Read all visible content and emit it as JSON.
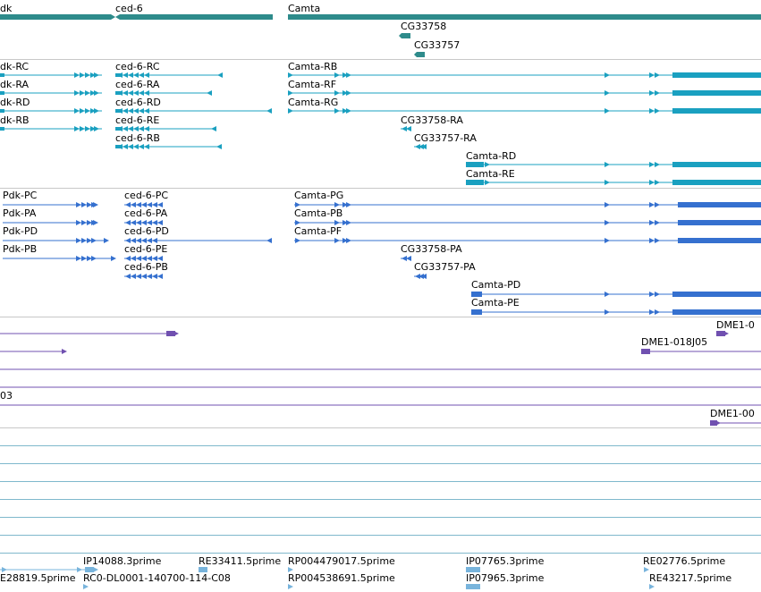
{
  "colors": {
    "gene": "#2e8b8b",
    "mrna": "#1aa0c0",
    "cds": "#3570cf",
    "clone": "#7050b0",
    "est": "#78b4dc",
    "est_line": "#7fb8cc",
    "divider": "#c8c8c8"
  },
  "genes": [
    {
      "label": "dk"
    },
    {
      "label": "ced-6"
    },
    {
      "label": "Camta"
    },
    {
      "label": "CG33758"
    },
    {
      "label": "CG33757"
    }
  ],
  "transcripts": [
    {
      "label": "dk-RC"
    },
    {
      "label": "dk-RA"
    },
    {
      "label": "dk-RD"
    },
    {
      "label": "dk-RB"
    },
    {
      "label": "ced-6-RC"
    },
    {
      "label": "ced-6-RA"
    },
    {
      "label": "ced-6-RD"
    },
    {
      "label": "ced-6-RE"
    },
    {
      "label": "ced-6-RB"
    },
    {
      "label": "Camta-RB"
    },
    {
      "label": "Camta-RF"
    },
    {
      "label": "Camta-RG"
    },
    {
      "label": "CG33758-RA"
    },
    {
      "label": "CG33757-RA"
    },
    {
      "label": "Camta-RD"
    },
    {
      "label": "Camta-RE"
    }
  ],
  "proteins": [
    {
      "label": "Pdk-PC"
    },
    {
      "label": "Pdk-PA"
    },
    {
      "label": "Pdk-PD"
    },
    {
      "label": "Pdk-PB"
    },
    {
      "label": "ced-6-PC"
    },
    {
      "label": "ced-6-PA"
    },
    {
      "label": "ced-6-PD"
    },
    {
      "label": "ced-6-PE"
    },
    {
      "label": "ced-6-PB"
    },
    {
      "label": "Camta-PG"
    },
    {
      "label": "Camta-PB"
    },
    {
      "label": "Camta-PF"
    },
    {
      "label": "CG33758-PA"
    },
    {
      "label": "CG33757-PA"
    },
    {
      "label": "Camta-PD"
    },
    {
      "label": "Camta-PE"
    }
  ],
  "clones": [
    {
      "label": "DME1-0"
    },
    {
      "label": "DME1-018J05"
    },
    {
      "label": "03"
    },
    {
      "label": "DME1-00"
    }
  ],
  "ests": [
    {
      "label": "E28819.5prime"
    },
    {
      "label": "IP14088.3prime"
    },
    {
      "label": "RC0-DL0001-140700-114-C08"
    },
    {
      "label": "RE33411.5prime"
    },
    {
      "label": "RP004479017.5prime"
    },
    {
      "label": "RP004538691.5prime"
    },
    {
      "label": "IP07765.3prime"
    },
    {
      "label": "IP07965.3prime"
    },
    {
      "label": "RE02776.5prime"
    },
    {
      "label": "RE43217.5prime"
    }
  ]
}
